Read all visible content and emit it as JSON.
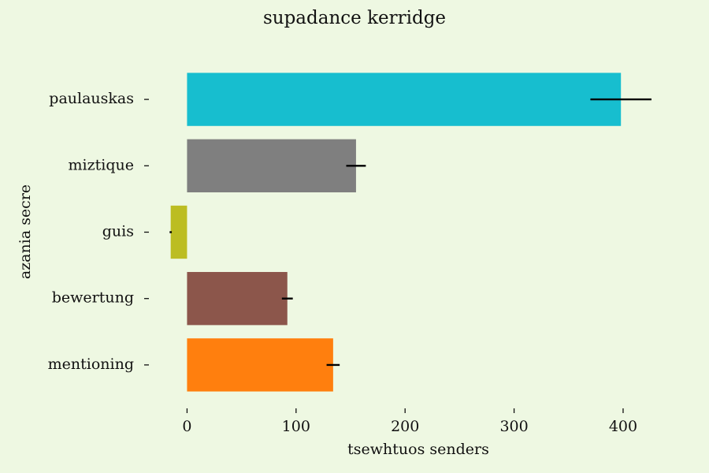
{
  "chart_data": {
    "type": "bar",
    "orientation": "horizontal",
    "title": "supadance kerridge",
    "xlabel": "tsewhtuos senders",
    "ylabel": "azania secre",
    "categories": [
      "paulauskas",
      "miztique",
      "guis",
      "bewertung",
      "mentioning"
    ],
    "values": [
      398,
      155,
      -15,
      92,
      134
    ],
    "errors": [
      28,
      9,
      1,
      5,
      6
    ],
    "colors": [
      "#17becf",
      "#7f7f7f",
      "#bcbd22",
      "#8c564b",
      "#ff7f0e"
    ],
    "xlim": [
      -35,
      460
    ],
    "xticks": [
      0,
      100,
      200,
      300,
      400
    ],
    "grid": false,
    "legend": "none"
  }
}
